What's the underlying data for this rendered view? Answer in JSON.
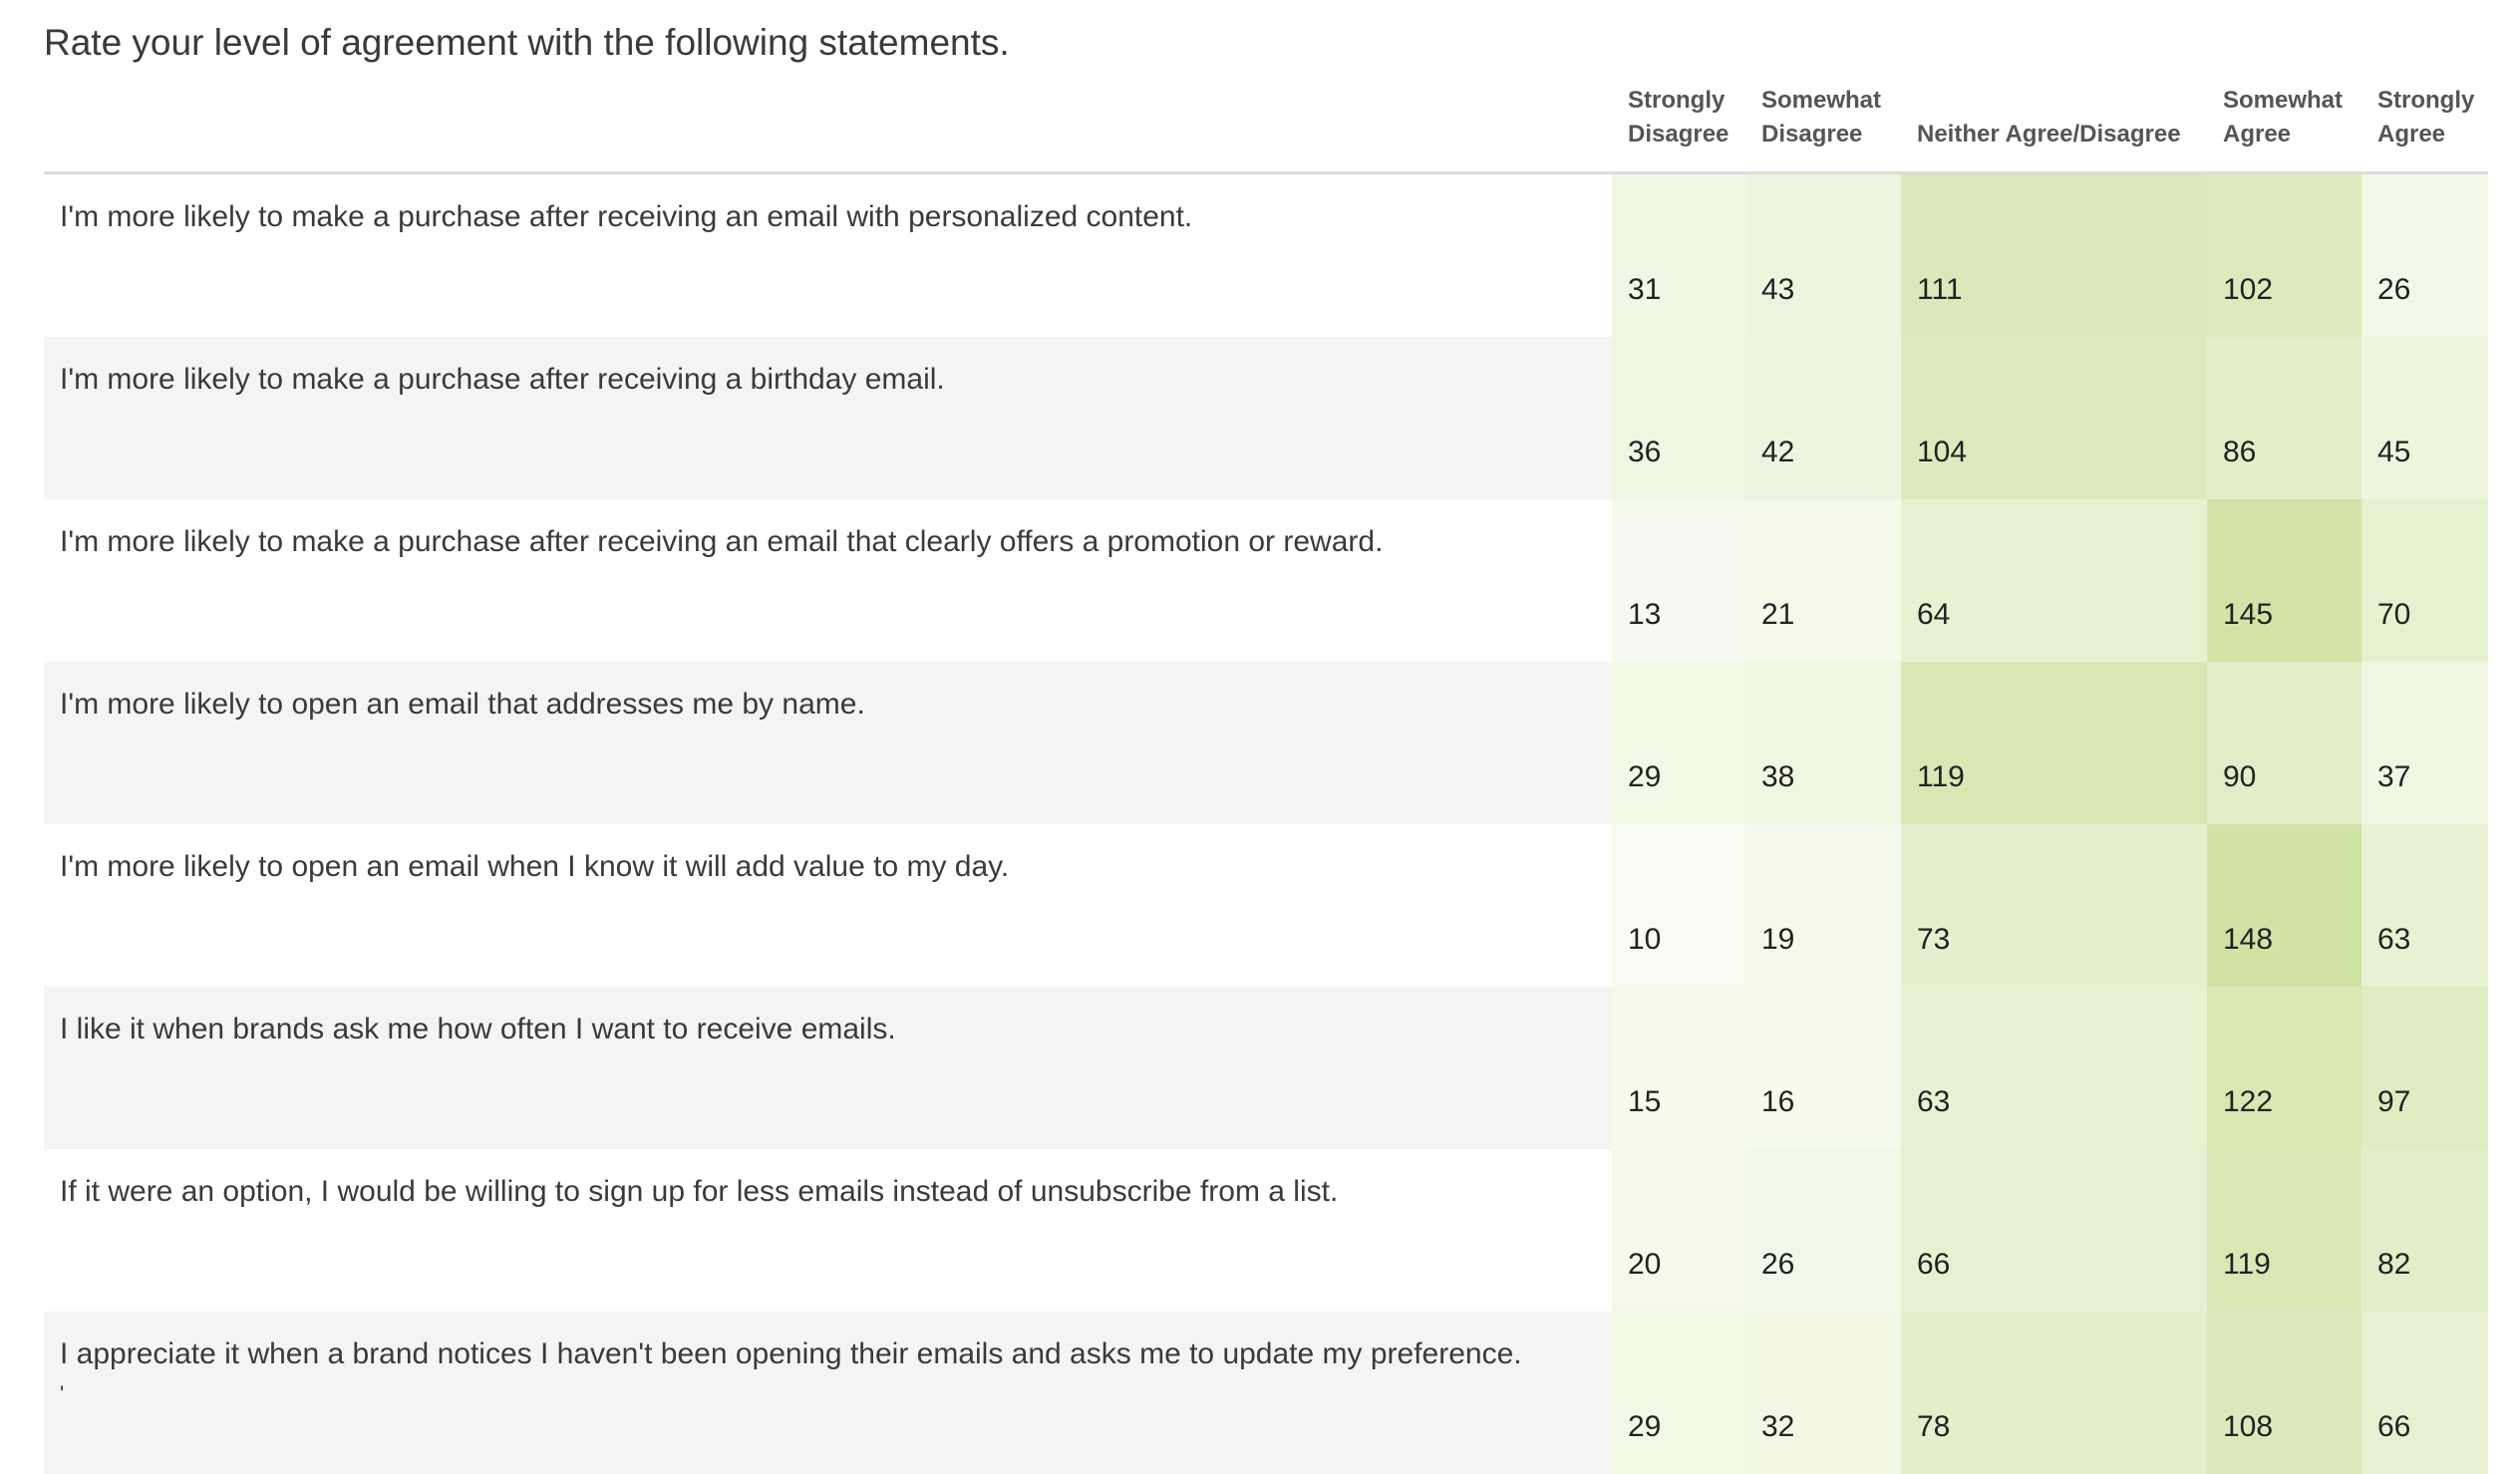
{
  "title": "Rate your level of agreement with the following statements.",
  "chart_data": {
    "type": "table",
    "columns": [
      {
        "line1": "Strongly",
        "line2": "Disagree"
      },
      {
        "line1": "Somewhat",
        "line2": "Disagree"
      },
      {
        "line1": "",
        "line2": "Neither Agree/Disagree"
      },
      {
        "line1": "Somewhat",
        "line2": "Agree"
      },
      {
        "line1": "Strongly",
        "line2": "Agree"
      }
    ],
    "rows": [
      {
        "statement": "I'm more likely to make a purchase after receiving an email with personalized content.",
        "extra": "",
        "values": [
          31,
          43,
          111,
          102,
          26
        ]
      },
      {
        "statement": "I'm more likely to make a purchase after receiving a birthday email.",
        "extra": "",
        "values": [
          36,
          42,
          104,
          86,
          45
        ]
      },
      {
        "statement": "I'm more likely to make a purchase after receiving an email that clearly offers a promotion or reward.",
        "extra": "",
        "values": [
          13,
          21,
          64,
          145,
          70
        ]
      },
      {
        "statement": "I'm more likely to open an email that addresses me by name.",
        "extra": "",
        "values": [
          29,
          38,
          119,
          90,
          37
        ]
      },
      {
        "statement": "I'm more likely to open an email when I know it will add value to my day.",
        "extra": "",
        "values": [
          10,
          19,
          73,
          148,
          63
        ]
      },
      {
        "statement": "I like it when brands ask me how often I want to receive emails.",
        "extra": "",
        "values": [
          15,
          16,
          63,
          122,
          97
        ]
      },
      {
        "statement": "If it were an option, I would be willing to sign up for less emails instead of unsubscribe from a list.",
        "extra": "",
        "values": [
          20,
          26,
          66,
          119,
          82
        ]
      },
      {
        "statement": "I appreciate it when a brand notices I haven't been opening their emails and asks me to update my preference.",
        "extra": "'",
        "values": [
          29,
          32,
          78,
          108,
          66
        ]
      }
    ],
    "heat_color_low": "#f7fbf0",
    "heat_color_high": "#cfe3a5"
  }
}
